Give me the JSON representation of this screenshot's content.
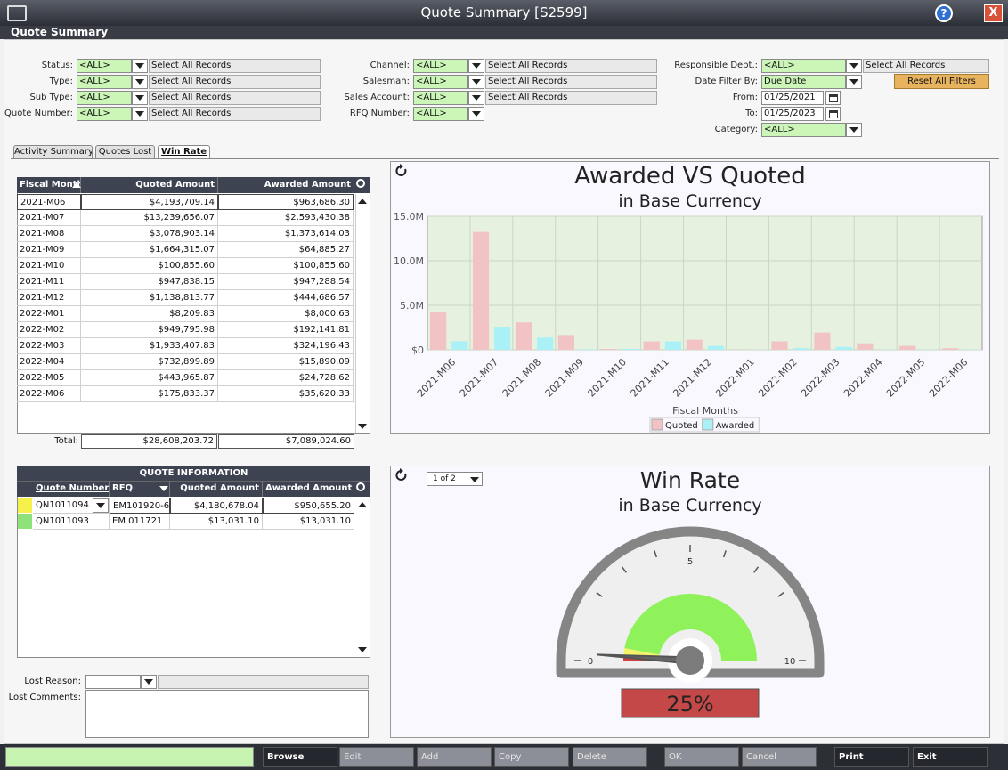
{
  "window": {
    "title": "Quote Summary [S2599]",
    "help": "?",
    "close": "X"
  },
  "header": {
    "title": "Quote Summary"
  },
  "filters": [
    [
      {
        "label": "Status:",
        "value": "<ALL>",
        "records": "Select All Records"
      },
      {
        "label": "Type:",
        "value": "<ALL>",
        "records": "Select All Records"
      },
      {
        "label": "Sub Type:",
        "value": "<ALL>",
        "records": "Select All Records"
      },
      {
        "label": "Quote Number:",
        "value": "<ALL>",
        "records": "Select All Records"
      }
    ],
    [
      {
        "label": "Channel:",
        "value": "<ALL>",
        "records": "Select All Records"
      },
      {
        "label": "Salesman:",
        "value": "<ALL>",
        "records": "Select All Records"
      },
      {
        "label": "Sales Account:",
        "value": "<ALL>",
        "records": "Select All Records"
      },
      {
        "label": "RFQ Number:",
        "value": "<ALL>"
      }
    ],
    [
      {
        "label": "Responsible Dept.:",
        "value": "<ALL>",
        "records": "Select All Records"
      },
      {
        "label": "Date Filter By:",
        "value": "Due Date"
      },
      {
        "label": "From:",
        "date": "01/25/2021"
      },
      {
        "label": "To:",
        "date": "01/25/2023"
      },
      {
        "label": "Category:",
        "value": "<ALL>"
      }
    ]
  ],
  "reset_button": "Reset All Filters",
  "tabs": {
    "items": [
      "Activity Summary",
      "Quotes Lost",
      "Win Rate"
    ],
    "active": 2
  },
  "monthly_table": {
    "columns": [
      "Fiscal Month",
      "Quoted Amount",
      "Awarded Amount"
    ],
    "rows": [
      [
        "2021-M06",
        "$4,193,709.14",
        "$963,686.30"
      ],
      [
        "2021-M07",
        "$13,239,656.07",
        "$2,593,430.38"
      ],
      [
        "2021-M08",
        "$3,078,903.14",
        "$1,373,614.03"
      ],
      [
        "2021-M09",
        "$1,664,315.07",
        "$64,885.27"
      ],
      [
        "2021-M10",
        "$100,855.60",
        "$100,855.60"
      ],
      [
        "2021-M11",
        "$947,838.15",
        "$947,288.54"
      ],
      [
        "2021-M12",
        "$1,138,813.77",
        "$444,686.57"
      ],
      [
        "2022-M01",
        "$8,209.83",
        "$8,000.63"
      ],
      [
        "2022-M02",
        "$949,795.98",
        "$192,141.81"
      ],
      [
        "2022-M03",
        "$1,933,407.83",
        "$324,196.43"
      ],
      [
        "2022-M04",
        "$732,899.89",
        "$15,890.09"
      ],
      [
        "2022-M05",
        "$443,965.87",
        "$24,728.62"
      ],
      [
        "2022-M06",
        "$175,833.37",
        "$35,620.33"
      ]
    ],
    "total_label": "Total:",
    "totals": [
      "$28,608,203.72",
      "$7,089,024.60"
    ]
  },
  "quote_table": {
    "title": "QUOTE INFORMATION",
    "columns": [
      "Quote Number",
      "RFQ",
      "Quoted Amount",
      "Awarded Amount"
    ],
    "rows": [
      {
        "marker": "#f5f04a",
        "cells": [
          "QN1011094",
          "EM101920-6",
          "$4,180,678.04",
          "$950,655.20"
        ]
      },
      {
        "marker": "#8ee27a",
        "cells": [
          "QN1011093",
          "EM 011721",
          "$13,031.10",
          "$13,031.10"
        ]
      }
    ]
  },
  "lost": {
    "reason_label": "Lost Reason:",
    "comments_label": "Lost Comments:"
  },
  "pager": "1 of 2",
  "chart_data": [
    {
      "type": "bar",
      "title": "Awarded VS Quoted",
      "subtitle": "in Base Currency",
      "x_label": "Fiscal Months",
      "categories": [
        "2021-M06",
        "2021-M07",
        "2021-M08",
        "2021-M09",
        "2021-M10",
        "2021-M11",
        "2021-M12",
        "2022-M01",
        "2022-M02",
        "2022-M03",
        "2022-M04",
        "2022-M05",
        "2022-M06"
      ],
      "series": [
        {
          "name": "Quoted",
          "color": "#f2c3c5",
          "values": [
            4193709.14,
            13239656.07,
            3078903.14,
            1664315.07,
            100855.6,
            947838.15,
            1138813.77,
            8209.83,
            949795.98,
            1933407.83,
            732899.89,
            443965.87,
            175833.37
          ]
        },
        {
          "name": "Awarded",
          "color": "#a9f1f6",
          "values": [
            963686.3,
            2593430.38,
            1373614.03,
            64885.27,
            100855.6,
            947288.54,
            444686.57,
            8000.63,
            192141.81,
            324196.43,
            15890.09,
            24728.62,
            35620.33
          ]
        }
      ],
      "ylim": [
        0,
        15000000
      ],
      "yticks": [
        {
          "value": 0,
          "label": "$0"
        },
        {
          "value": 5000000,
          "label": "5.0M"
        },
        {
          "value": 10000000,
          "label": "10.0M"
        },
        {
          "value": 15000000,
          "label": "15.0M"
        }
      ],
      "grid": true
    },
    {
      "type": "gauge",
      "title": "Win Rate",
      "subtitle": "in Base Currency",
      "range": [
        0,
        10
      ],
      "ticks": [
        0,
        5,
        10
      ],
      "minor_ticks": [
        2,
        3,
        4,
        6,
        7,
        8
      ],
      "bands": [
        {
          "from": 0,
          "to": 0.15,
          "color": "#d04040"
        },
        {
          "from": 0.15,
          "to": 0.6,
          "color": "#f3f36a"
        },
        {
          "from": 0.6,
          "to": 10,
          "color": "#8ff25a"
        }
      ],
      "needle": 0.2,
      "readout": "25%",
      "readout_color": "#c44848"
    }
  ],
  "buttons": [
    {
      "label": "Browse",
      "enabled": true
    },
    {
      "label": "Edit",
      "enabled": false
    },
    {
      "label": "Add",
      "enabled": false
    },
    {
      "label": "Copy",
      "enabled": false
    },
    {
      "label": "Delete",
      "enabled": false
    },
    {
      "label": "OK",
      "enabled": false
    },
    {
      "label": "Cancel",
      "enabled": false
    },
    {
      "label": "Print",
      "enabled": true
    },
    {
      "label": "Exit",
      "enabled": true
    }
  ]
}
